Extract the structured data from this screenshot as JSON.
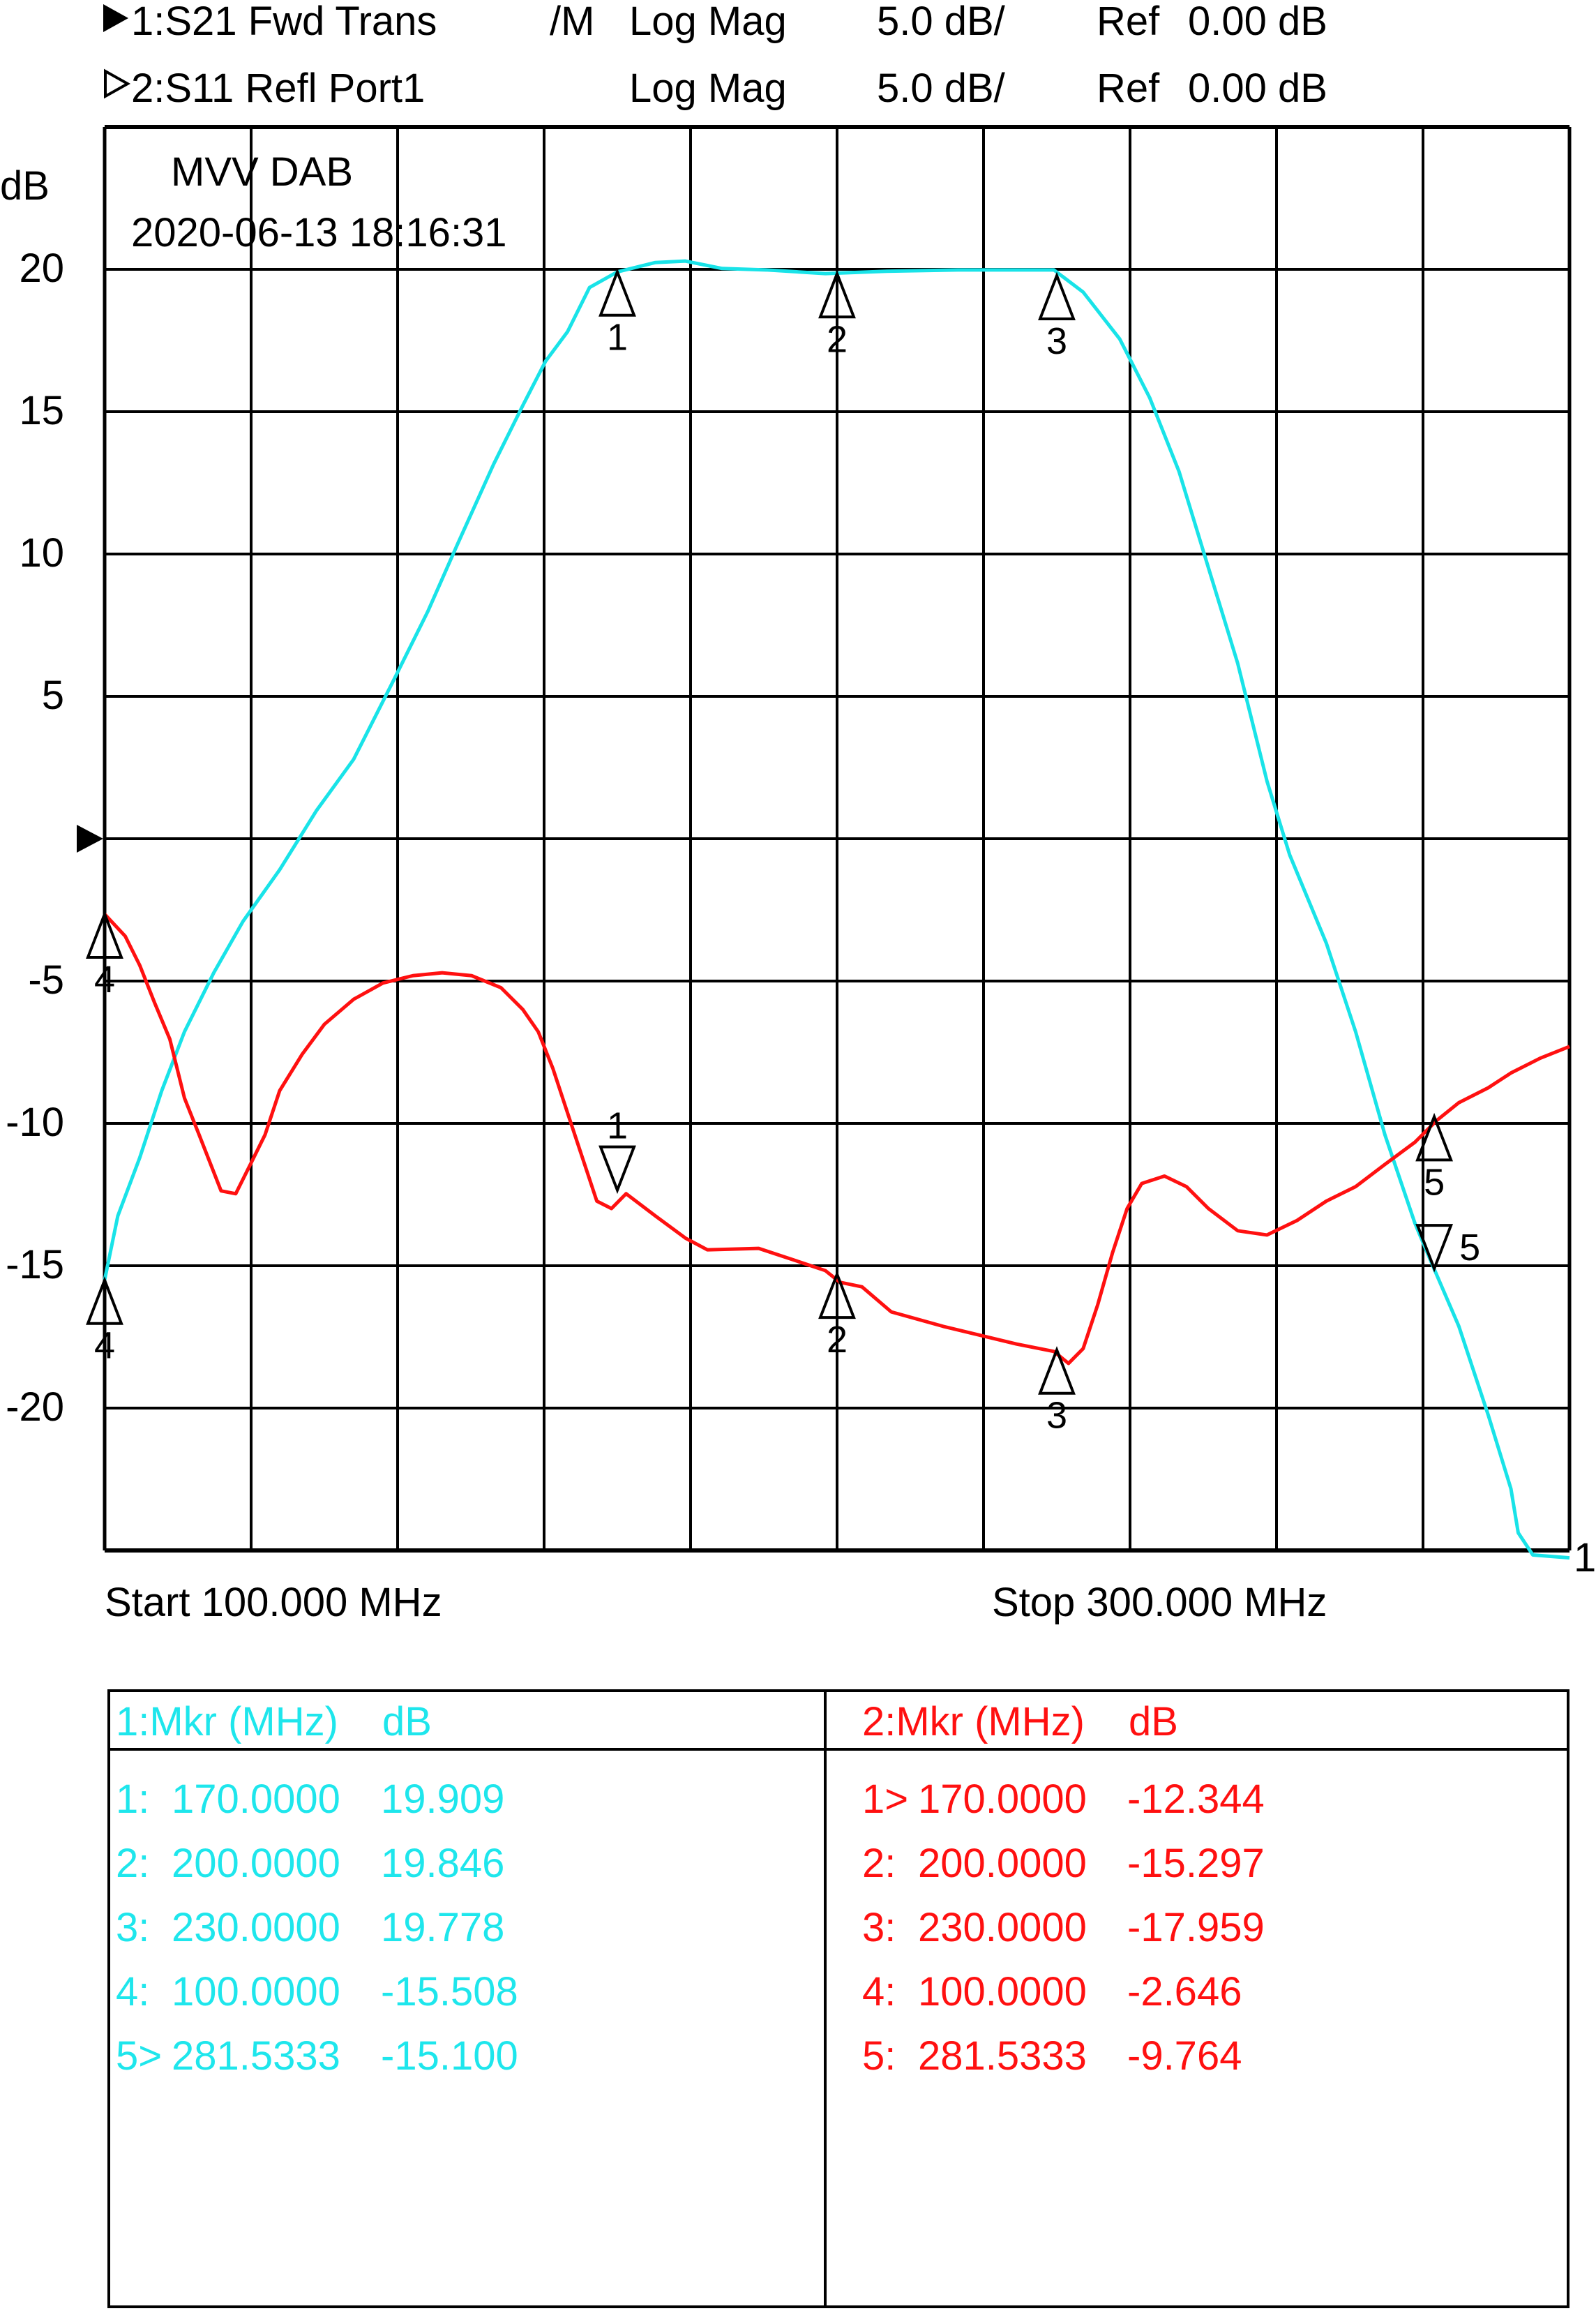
{
  "header": {
    "trace1": {
      "name": "1:S21 Fwd Trans",
      "flag": "/M",
      "format": "Log Mag",
      "scale": "5.0 dB/",
      "ref_label": "Ref",
      "ref_value": "0.00 dB"
    },
    "trace2": {
      "name": "2:S11 Refl Port1",
      "format": "Log Mag",
      "scale": "5.0 dB/",
      "ref_label": "Ref",
      "ref_value": "0.00 dB"
    }
  },
  "annotation": {
    "title": "MVV DAB",
    "datetime": "2020-06-13 18:16:31"
  },
  "footer": {
    "start": "Start 100.000 MHz",
    "stop": "Stop 300.000 MHz",
    "trace_end_label": "1"
  },
  "chart_data": {
    "type": "line",
    "ylabel": "dB",
    "xlim": [
      100,
      300
    ],
    "ylim": [
      -25,
      25
    ],
    "reference_level": 0,
    "grid": true,
    "x_divisions": 10,
    "y_tick_labels": [
      {
        "value": 20,
        "label": "20"
      },
      {
        "value": 15,
        "label": "15"
      },
      {
        "value": 10,
        "label": "10"
      },
      {
        "value": 5,
        "label": "5"
      },
      {
        "value": -5,
        "label": "-5"
      },
      {
        "value": -10,
        "label": "-10"
      },
      {
        "value": -15,
        "label": "-15"
      },
      {
        "value": -20,
        "label": "-20"
      }
    ],
    "series": [
      {
        "name": "S21 Fwd Trans",
        "color": "#19e3e8",
        "x": [
          100,
          101.8,
          104.8,
          107.8,
          110.9,
          114.9,
          118.9,
          123.9,
          128.9,
          134.0,
          139.6,
          144.1,
          148.1,
          153.1,
          157.1,
          160.2,
          163.2,
          166.2,
          170,
          175.2,
          179.3,
          184.3,
          190.3,
          198.4,
          206.4,
          216.5,
          229.6,
          233.6,
          238.6,
          242.7,
          246.7,
          250.7,
          254.7,
          258.7,
          261.8,
          266.8,
          270.8,
          274.8,
          278.9,
          281.5,
          284.9,
          288.9,
          292.0,
          293.0,
          295.0,
          300
        ],
        "y": [
          -15.5,
          -13.25,
          -11.2,
          -8.85,
          -6.78,
          -4.71,
          -2.9,
          -1.09,
          0.98,
          2.79,
          5.64,
          7.97,
          10.3,
          13.15,
          15.22,
          16.77,
          17.81,
          19.36,
          19.91,
          20.24,
          20.29,
          20.03,
          19.98,
          19.85,
          19.93,
          19.98,
          19.98,
          19.2,
          17.55,
          15.48,
          12.89,
          9.52,
          6.16,
          2.02,
          -0.57,
          -3.67,
          -6.78,
          -10.4,
          -13.51,
          -15.1,
          -17.13,
          -20.24,
          -22.83,
          -24.38,
          -25.16,
          -25.26
        ],
        "markers": [
          {
            "id": "1",
            "x": 170,
            "y": 19.909,
            "dir": "up"
          },
          {
            "id": "2",
            "x": 200,
            "y": 19.846,
            "dir": "up"
          },
          {
            "id": "3",
            "x": 230,
            "y": 19.778,
            "dir": "up"
          },
          {
            "id": "4",
            "x": 100,
            "y": -15.508,
            "dir": "up"
          },
          {
            "id": "5",
            "x": 281.5333,
            "y": -15.1,
            "dir": "down"
          }
        ]
      },
      {
        "name": "S11 Refl Port1",
        "color": "#ff1010",
        "x": [
          100,
          102.8,
          104.8,
          106.8,
          108.9,
          110.9,
          112.9,
          115.9,
          117.9,
          119.9,
          121.9,
          123.9,
          127.0,
          130.0,
          134.0,
          138.0,
          142.1,
          146.1,
          150.1,
          154.1,
          157.1,
          159.2,
          161.2,
          163.2,
          165.2,
          167.2,
          169.2,
          171.2,
          175.2,
          179.3,
          182.3,
          189.3,
          195.4,
          198.4,
          200.4,
          203.4,
          207.4,
          214.5,
          224.5,
          229.6,
          231.6,
          233.6,
          235.6,
          237.6,
          239.6,
          241.6,
          244.7,
          247.7,
          250.7,
          254.7,
          258.7,
          262.8,
          266.8,
          270.8,
          274.8,
          278.9,
          281.9,
          284.9,
          288.9,
          292.0,
          296.0,
          300
        ],
        "y": [
          -2.65,
          -3.42,
          -4.45,
          -5.75,
          -7.04,
          -9.11,
          -10.4,
          -12.37,
          -12.47,
          -11.44,
          -10.4,
          -8.85,
          -7.56,
          -6.52,
          -5.64,
          -5.07,
          -4.81,
          -4.71,
          -4.81,
          -5.23,
          -6.0,
          -6.78,
          -8.07,
          -9.63,
          -11.18,
          -12.73,
          -12.99,
          -12.47,
          -13.25,
          -14.03,
          -14.44,
          -14.39,
          -14.91,
          -15.17,
          -15.58,
          -15.74,
          -16.62,
          -17.13,
          -17.75,
          -18.01,
          -18.43,
          -17.91,
          -16.36,
          -14.55,
          -12.99,
          -12.11,
          -11.85,
          -12.22,
          -12.99,
          -13.77,
          -13.92,
          -13.41,
          -12.73,
          -12.22,
          -11.44,
          -10.66,
          -9.89,
          -9.27,
          -8.75,
          -8.23,
          -7.71,
          -7.3
        ],
        "markers": [
          {
            "id": "1",
            "x": 170,
            "y": -12.344,
            "dir": "down"
          },
          {
            "id": "2",
            "x": 200,
            "y": -15.297,
            "dir": "up"
          },
          {
            "id": "3",
            "x": 230,
            "y": -17.959,
            "dir": "up"
          },
          {
            "id": "4",
            "x": 100,
            "y": -2.646,
            "dir": "up"
          },
          {
            "id": "5",
            "x": 281.5333,
            "y": -9.764,
            "dir": "up"
          }
        ]
      }
    ]
  },
  "marker_table": {
    "left": {
      "header_mkr": "1:Mkr (MHz)",
      "header_unit": "dB",
      "color": "#1ee6ec",
      "rows": [
        {
          "id": "1:",
          "freq": "170.0000",
          "value": "19.909"
        },
        {
          "id": "2:",
          "freq": "200.0000",
          "value": "19.846"
        },
        {
          "id": "3:",
          "freq": "230.0000",
          "value": "19.778"
        },
        {
          "id": "4:",
          "freq": "100.0000",
          "value": "-15.508"
        },
        {
          "id": "5>",
          "freq": "281.5333",
          "value": "-15.100"
        }
      ]
    },
    "right": {
      "header_mkr": "2:Mkr (MHz)",
      "header_unit": "dB",
      "color": "#ff1010",
      "rows": [
        {
          "id": "1>",
          "freq": "170.0000",
          "value": "-12.344"
        },
        {
          "id": "2:",
          "freq": "200.0000",
          "value": "-15.297"
        },
        {
          "id": "3:",
          "freq": "230.0000",
          "value": "-17.959"
        },
        {
          "id": "4:",
          "freq": "100.0000",
          "value": "-2.646"
        },
        {
          "id": "5:",
          "freq": "281.5333",
          "value": "-9.764"
        }
      ]
    }
  }
}
